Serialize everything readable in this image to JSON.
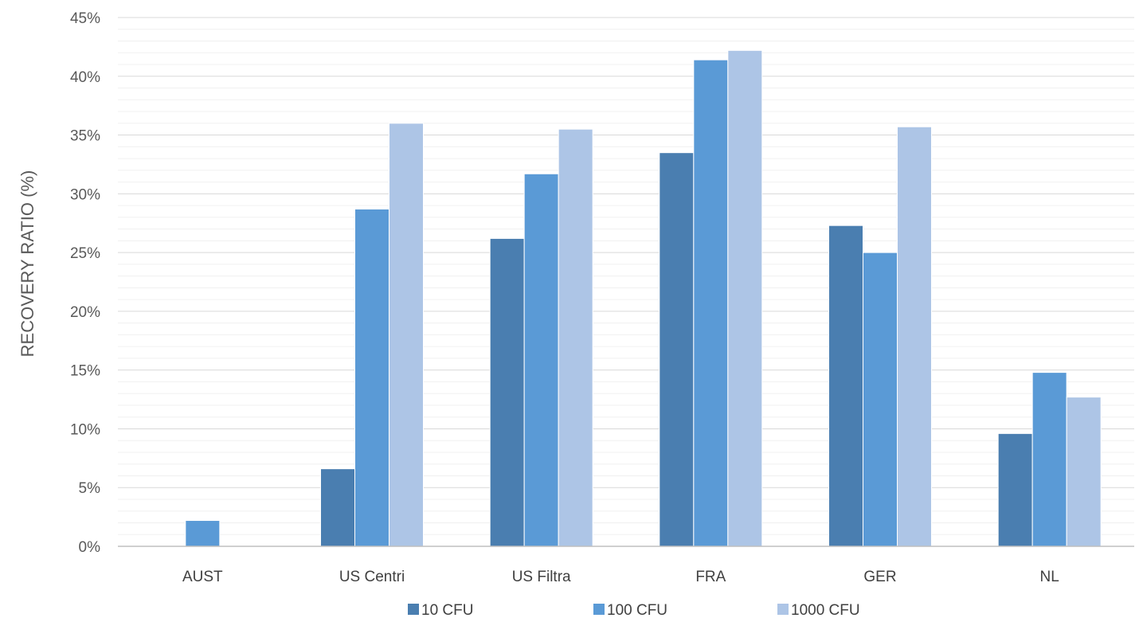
{
  "chart_data": {
    "type": "bar",
    "title": "",
    "xlabel": "",
    "ylabel": "RECOVERY RATIO (%)",
    "ylim": [
      0,
      45
    ],
    "y_ticks": [
      0,
      5,
      10,
      15,
      20,
      25,
      30,
      35,
      40,
      45
    ],
    "y_tick_suffix": "%",
    "minor_gridlines": true,
    "legend_position": "bottom",
    "categories": [
      "AUST",
      "US Centri",
      "US Filtra",
      "FRA",
      "GER",
      "NL"
    ],
    "series": [
      {
        "name": "10 CFU",
        "color": "#4a7eb0",
        "values": [
          0,
          6.6,
          26.2,
          33.5,
          27.3,
          9.6
        ]
      },
      {
        "name": "100 CFU",
        "color": "#5a9ad6",
        "values": [
          2.2,
          28.7,
          31.7,
          41.4,
          25.0,
          14.8
        ]
      },
      {
        "name": "1000 CFU",
        "color": "#adc5e6",
        "values": [
          0,
          36.0,
          35.5,
          42.2,
          35.7,
          12.7
        ]
      }
    ]
  }
}
